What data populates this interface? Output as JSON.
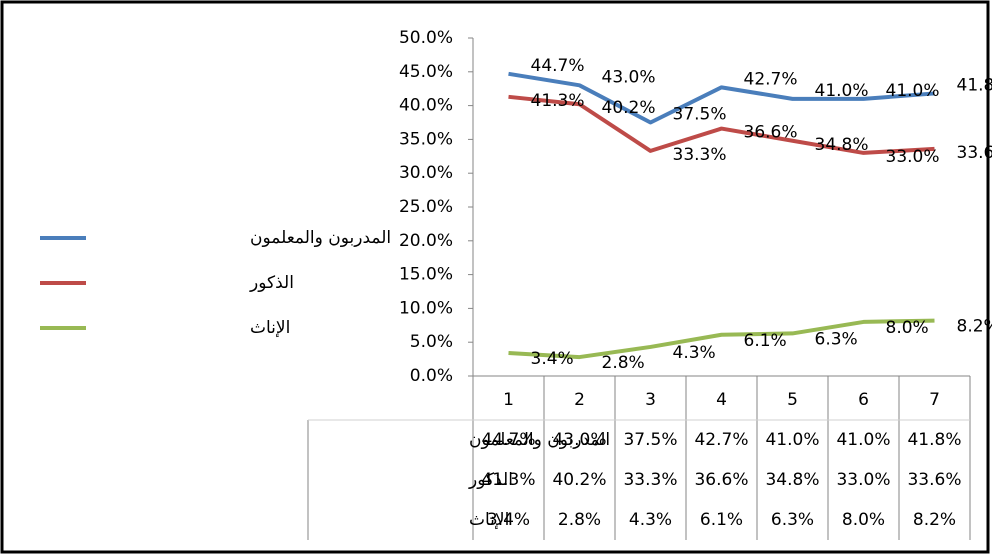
{
  "chart_data": {
    "type": "line",
    "categories": [
      "1",
      "2",
      "3",
      "4",
      "5",
      "6",
      "7"
    ],
    "series": [
      {
        "name": "المدربون والمعلمون",
        "color": "#4a7ebb",
        "values": [
          44.7,
          43.0,
          37.5,
          42.7,
          41.0,
          41.0,
          41.8
        ],
        "value_labels": [
          "44.7%",
          "43.0%",
          "37.5%",
          "42.7%",
          "41.0%",
          "41.0%",
          "41.8%"
        ]
      },
      {
        "name": "الذكور",
        "color": "#be4b48",
        "values": [
          41.3,
          40.2,
          33.3,
          36.6,
          34.8,
          33.0,
          33.6
        ],
        "value_labels": [
          "41.3%",
          "40.2%",
          "33.3%",
          "36.6%",
          "34.8%",
          "33.0%",
          "33.6%"
        ]
      },
      {
        "name": "الإناث",
        "color": "#98b954",
        "values": [
          3.4,
          2.8,
          4.3,
          6.1,
          6.3,
          8.0,
          8.2
        ],
        "value_labels": [
          "3.4%",
          "2.8%",
          "4.3%",
          "6.1%",
          "6.3%",
          "8.0%",
          "8.2%"
        ]
      }
    ],
    "ylim": [
      0,
      50
    ],
    "yticks": [
      {
        "value": 0,
        "label": "0.0%"
      },
      {
        "value": 5,
        "label": "5.0%"
      },
      {
        "value": 10,
        "label": "10.0%"
      },
      {
        "value": 15,
        "label": "15.0%"
      },
      {
        "value": 20,
        "label": "20.0%"
      },
      {
        "value": 25,
        "label": "25.0%"
      },
      {
        "value": 30,
        "label": "30.0%"
      },
      {
        "value": 35,
        "label": "35.0%"
      },
      {
        "value": 40,
        "label": "40.0%"
      },
      {
        "value": 45,
        "label": "45.0%"
      },
      {
        "value": 50,
        "label": "50.0%"
      }
    ],
    "legend": "left",
    "data_table": true
  }
}
